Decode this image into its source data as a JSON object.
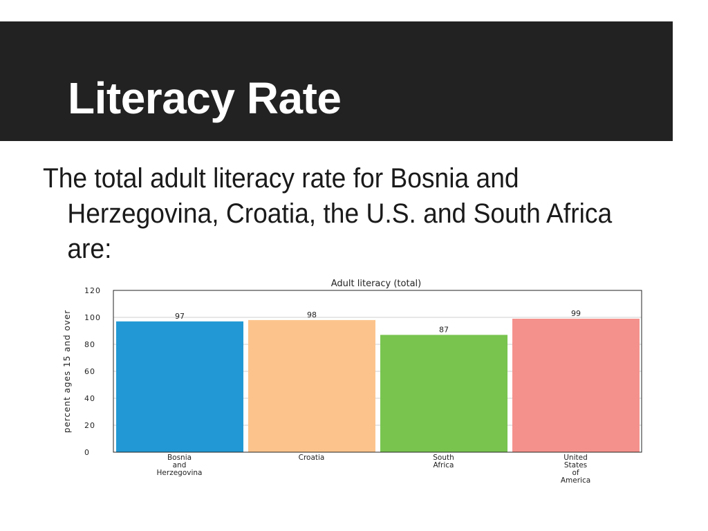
{
  "slide": {
    "title": "Literacy Rate",
    "body": "The total adult literacy rate for Bosnia and Herzegovina, Croatia, the U.S. and South Africa are:"
  },
  "chart_data": {
    "type": "bar",
    "title": "Adult literacy (total)",
    "ylabel": "percent ages 15 and over",
    "xlabel": "",
    "ylim": [
      0,
      120
    ],
    "yticks": [
      0,
      20,
      40,
      60,
      80,
      100,
      120
    ],
    "grid": true,
    "categories": [
      [
        "Bosnia",
        "and",
        "Herzegovina"
      ],
      [
        "Croatia"
      ],
      [
        "South",
        "Africa"
      ],
      [
        "United",
        "States",
        "of",
        "America"
      ]
    ],
    "values": [
      97,
      98,
      87,
      99
    ],
    "colors": [
      "#2299d4",
      "#fcc48c",
      "#78c44f",
      "#f4918c"
    ]
  }
}
